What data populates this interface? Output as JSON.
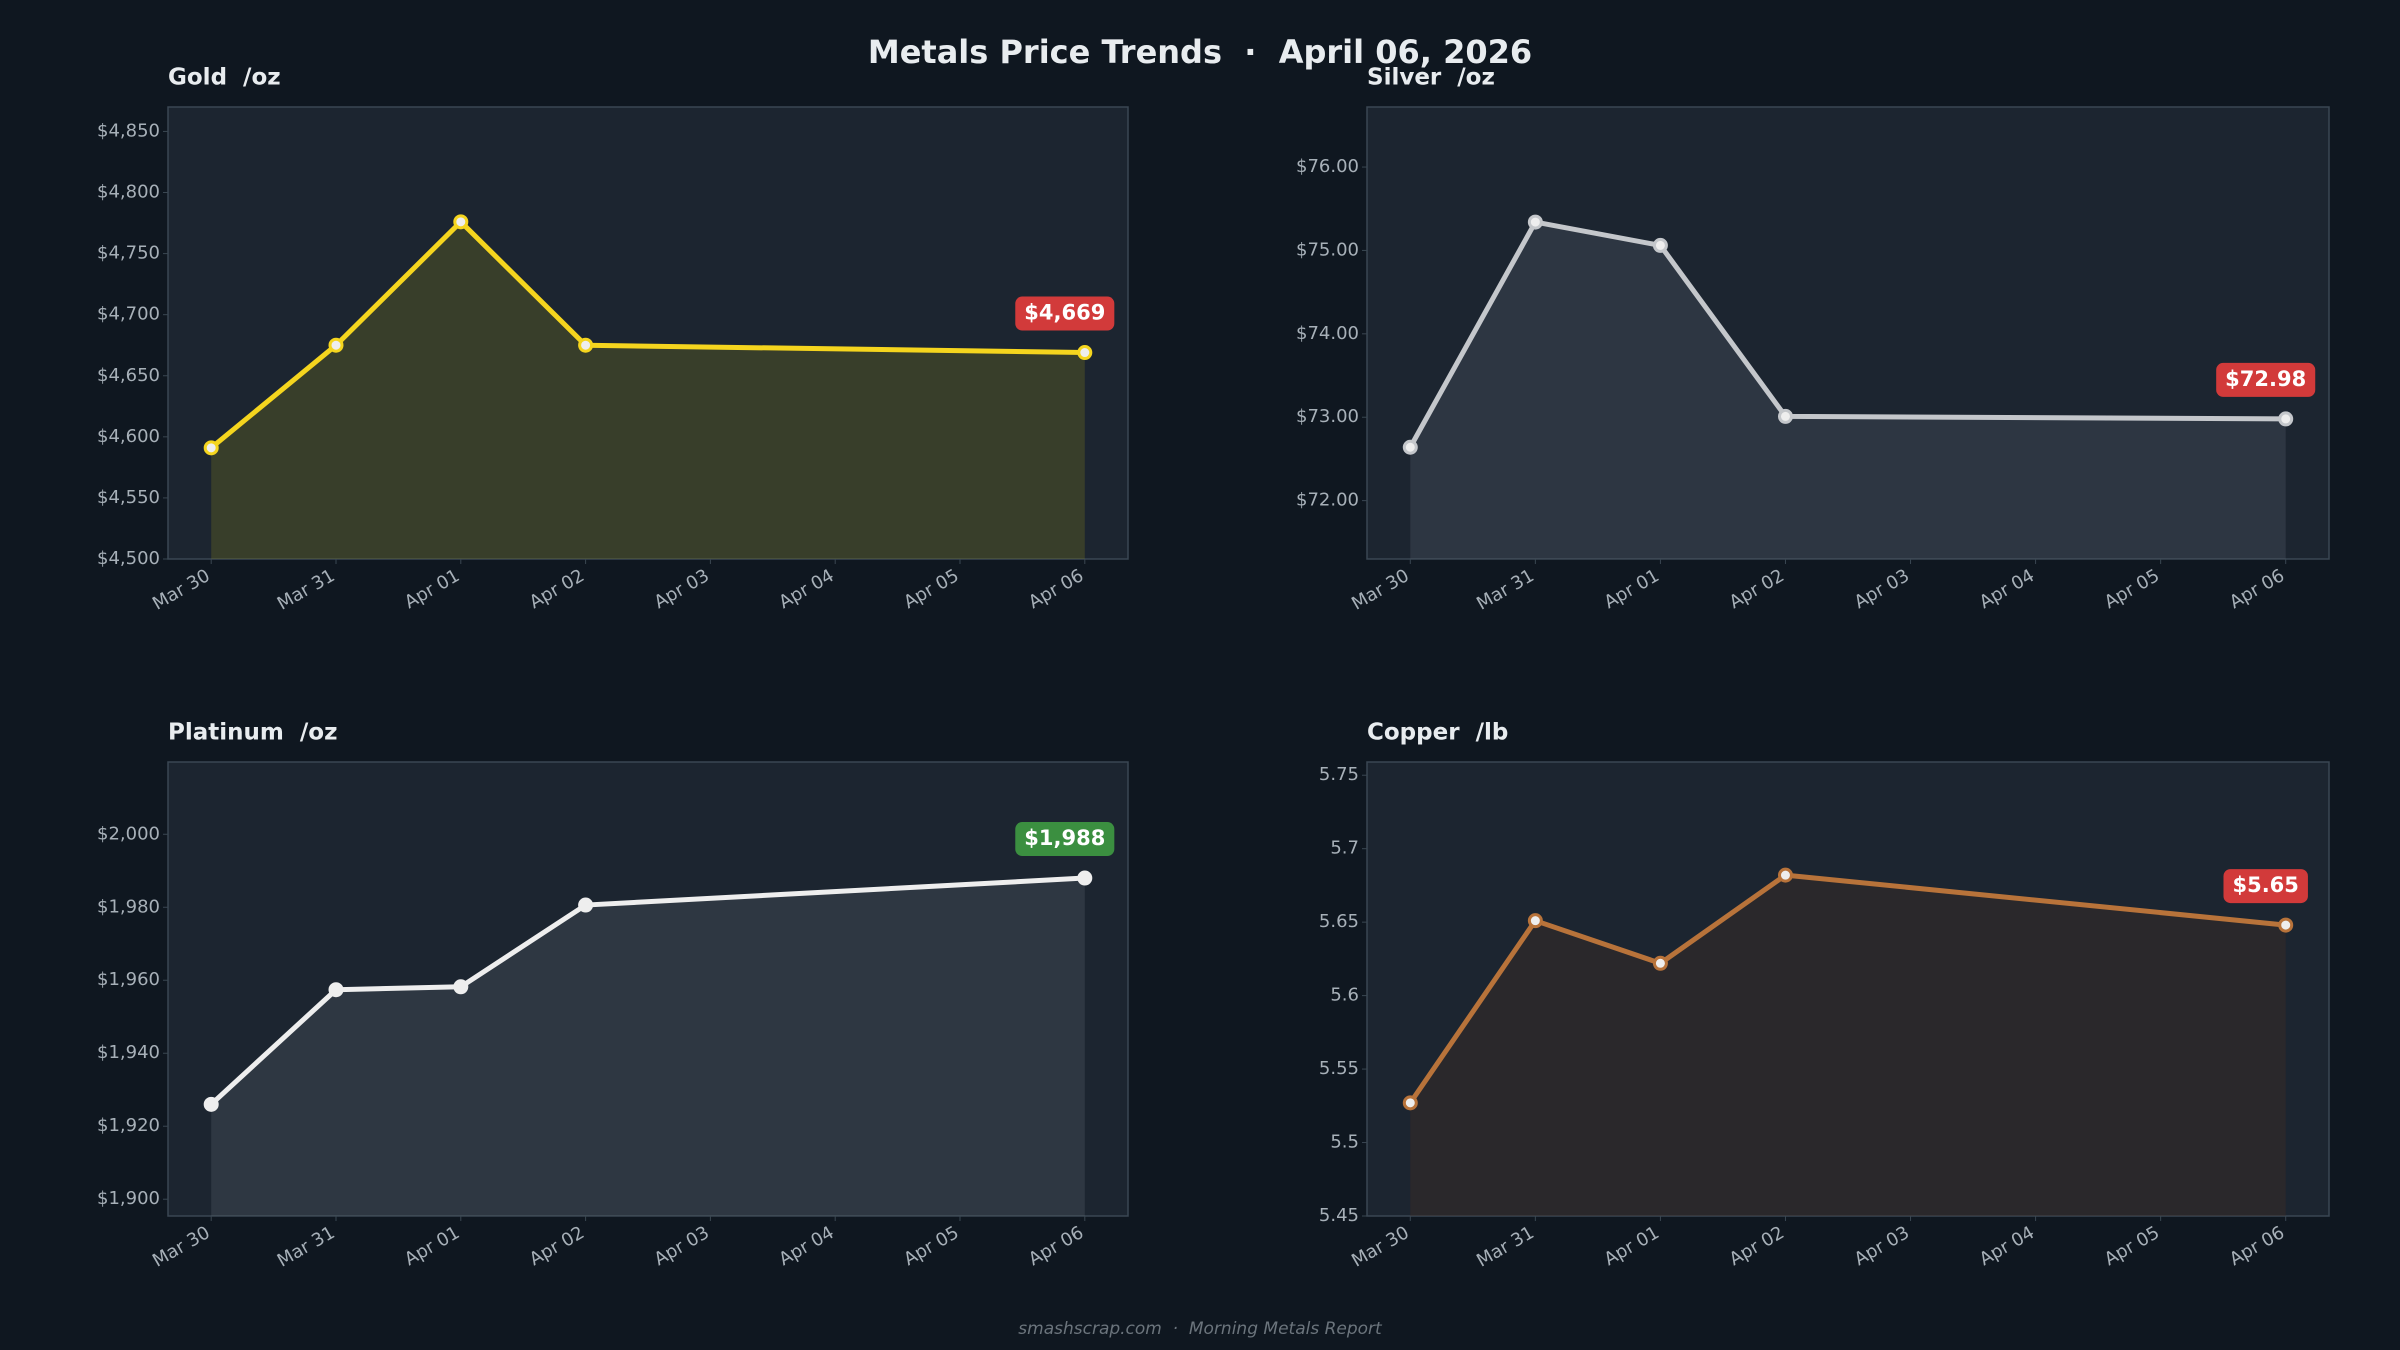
{
  "title": "Metals Price Trends  ·  April 06, 2026",
  "footer": "smashscrap.com  ·  Morning Metals Report",
  "chart_data": [
    {
      "type": "line",
      "title": "Gold  /oz",
      "xticks": [
        "Mar 30",
        "Mar 31",
        "Apr 01",
        "Apr 02",
        "Apr 03",
        "Apr 04",
        "Apr 05",
        "Apr 06"
      ],
      "x": [
        "Mar 30",
        "Mar 31",
        "Apr 01",
        "Apr 02",
        "Apr 06"
      ],
      "values": [
        4591,
        4675,
        4776,
        4675,
        4669
      ],
      "value_labels": [
        null,
        null,
        null,
        null,
        "$4,669"
      ],
      "color": "#f5d51e",
      "fill": "rgba(130,130,30,0.28)",
      "label_color": "#d23a3a",
      "ylim": [
        4500,
        4870
      ],
      "yticks": [
        {
          "value": 4500,
          "label": "$4,500"
        },
        {
          "value": 4550,
          "label": "$4,550"
        },
        {
          "value": 4600,
          "label": "$4,600"
        },
        {
          "value": 4650,
          "label": "$4,650"
        },
        {
          "value": 4700,
          "label": "$4,700"
        },
        {
          "value": 4750,
          "label": "$4,750"
        },
        {
          "value": 4800,
          "label": "$4,800"
        },
        {
          "value": 4850,
          "label": "$4,850"
        }
      ]
    },
    {
      "type": "line",
      "title": "Silver  /oz",
      "xticks": [
        "Mar 30",
        "Mar 31",
        "Apr 01",
        "Apr 02",
        "Apr 03",
        "Apr 04",
        "Apr 05",
        "Apr 06"
      ],
      "x": [
        "Mar 30",
        "Mar 31",
        "Apr 01",
        "Apr 02",
        "Apr 06"
      ],
      "values": [
        72.64,
        75.34,
        75.06,
        73.01,
        72.98
      ],
      "value_labels": [
        null,
        null,
        null,
        null,
        "$72.98"
      ],
      "color": "#c4c7cb",
      "fill": "rgba(90,100,115,0.28)",
      "label_color": "#d23a3a",
      "ylim": [
        71.3,
        76.72
      ],
      "yticks": [
        {
          "value": 72,
          "label": "$72.00"
        },
        {
          "value": 73,
          "label": "$73.00"
        },
        {
          "value": 74,
          "label": "$74.00"
        },
        {
          "value": 75,
          "label": "$75.00"
        },
        {
          "value": 76,
          "label": "$76.00"
        }
      ]
    },
    {
      "type": "line",
      "title": "Platinum  /oz",
      "xticks": [
        "Mar 30",
        "Mar 31",
        "Apr 01",
        "Apr 02",
        "Apr 03",
        "Apr 04",
        "Apr 05",
        "Apr 06"
      ],
      "x": [
        "Mar 30",
        "Mar 31",
        "Apr 01",
        "Apr 02",
        "Apr 06"
      ],
      "values": [
        1926,
        1957.4,
        1958.2,
        1980.6,
        1988
      ],
      "value_labels": [
        null,
        null,
        null,
        null,
        "$1,988"
      ],
      "color": "#eeeeee",
      "fill": "rgba(100,110,120,0.25)",
      "label_color": "#3b8f40",
      "ylim": [
        1895.4,
        2019.8
      ],
      "yticks": [
        {
          "value": 1900,
          "label": "$1,900"
        },
        {
          "value": 1920,
          "label": "$1,920"
        },
        {
          "value": 1940,
          "label": "$1,940"
        },
        {
          "value": 1960,
          "label": "$1,960"
        },
        {
          "value": 1980,
          "label": "$1,980"
        },
        {
          "value": 2000,
          "label": "$2,000"
        }
      ]
    },
    {
      "type": "line",
      "title": "Copper  /lb",
      "xticks": [
        "Mar 30",
        "Mar 31",
        "Apr 01",
        "Apr 02",
        "Apr 03",
        "Apr 04",
        "Apr 05",
        "Apr 06"
      ],
      "x": [
        "Mar 30",
        "Mar 31",
        "Apr 01",
        "Apr 02",
        "Apr 06"
      ],
      "values": [
        5.527,
        5.651,
        5.622,
        5.682,
        5.648
      ],
      "value_labels": [
        null,
        null,
        null,
        null,
        "$5.65"
      ],
      "color": "#b8733a",
      "fill": "rgba(70,45,35,0.35)",
      "label_color": "#d23a3a",
      "ylim": [
        5.45,
        5.759
      ],
      "yticks": [
        5.45,
        5.5,
        5.55,
        5.6,
        5.65,
        5.7,
        5.75
      ]
    }
  ]
}
